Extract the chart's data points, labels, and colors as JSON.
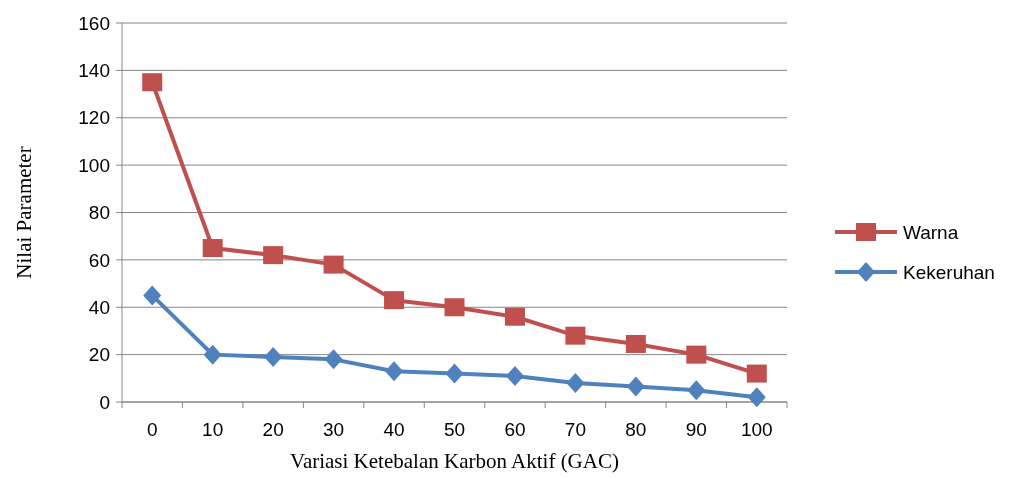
{
  "chart_data": {
    "type": "line",
    "xlabel": "Variasi Ketebalan Karbon Aktif (GAC)",
    "ylabel": "Nilai Parameter",
    "categories": [
      "0",
      "10",
      "20",
      "30",
      "40",
      "50",
      "60",
      "70",
      "80",
      "90",
      "100"
    ],
    "series": [
      {
        "name": "Warna",
        "color": "#c0504d",
        "marker": "square",
        "values": [
          135,
          65,
          62,
          58,
          43,
          40,
          36,
          28,
          24.5,
          20,
          12
        ]
      },
      {
        "name": "Kekeruhan",
        "color": "#4f81bd",
        "marker": "diamond",
        "values": [
          45,
          20,
          19,
          18,
          13,
          12,
          11,
          8,
          6.5,
          5,
          2
        ]
      }
    ],
    "ylim": [
      0,
      160
    ],
    "yticks": [
      0,
      20,
      40,
      60,
      80,
      100,
      120,
      140,
      160
    ],
    "grid": "y",
    "legend": "right",
    "line_style": "solid"
  }
}
